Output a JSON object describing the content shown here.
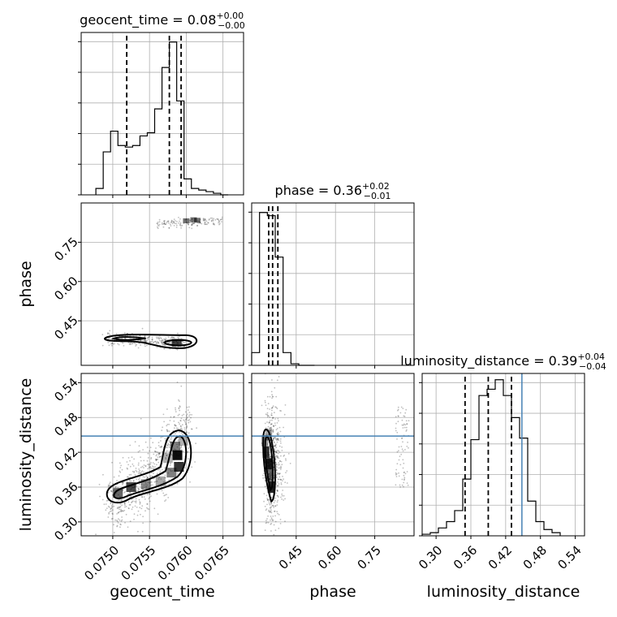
{
  "chart_data": {
    "type": "corner",
    "parameters": [
      "geocent_time",
      "phase",
      "luminosity_distance"
    ],
    "axis_labels": {
      "geocent_time": "geocent_time",
      "phase": "phase",
      "luminosity_distance": "luminosity_distance"
    },
    "ranges": {
      "geocent_time": [
        0.07457,
        0.07678
      ],
      "phase": [
        0.28,
        0.9
      ],
      "luminosity_distance": [
        0.276,
        0.556
      ]
    },
    "ticks": {
      "geocent_time": {
        "values": [
          0.075,
          0.0755,
          0.076,
          0.0765
        ],
        "labels": [
          "0.0750",
          "0.0755",
          "0.0760",
          "0.0765"
        ]
      },
      "phase": {
        "values": [
          0.45,
          0.6,
          0.75
        ],
        "labels": [
          "0.45",
          "0.60",
          "0.75"
        ]
      },
      "luminosity_distance": {
        "values": [
          0.3,
          0.36,
          0.42,
          0.48,
          0.54
        ],
        "labels": [
          "0.30",
          "0.36",
          "0.42",
          "0.48",
          "0.54"
        ]
      }
    },
    "titles": [
      {
        "param": "geocent_time",
        "base": "geocent_time = 0.08",
        "sup": "+0.00",
        "sub": "−0.00"
      },
      {
        "param": "phase",
        "base": "phase = 0.36",
        "sup": "+0.02",
        "sub": "−0.01"
      },
      {
        "param": "luminosity_distance",
        "base": "luminosity_distance = 0.39",
        "sup": "+0.04",
        "sub": "−0.04"
      }
    ],
    "histograms": {
      "geocent_time": {
        "edges": [
          0.07477,
          0.07487,
          0.07497,
          0.07507,
          0.07517,
          0.07527,
          0.07537,
          0.07547,
          0.07557,
          0.07567,
          0.07577,
          0.07587,
          0.07597,
          0.07607,
          0.07617,
          0.07627,
          0.07637,
          0.07647,
          0.07657
        ],
        "counts": [
          0.04,
          0.27,
          0.4,
          0.31,
          0.3,
          0.31,
          0.37,
          0.39,
          0.54,
          0.8,
          0.96,
          0.59,
          0.1,
          0.04,
          0.03,
          0.02,
          0.01,
          0.0
        ],
        "ymax": 1.02,
        "quantiles": [
          0.07519,
          0.07577,
          0.07593
        ]
      },
      "phase": {
        "edges": [
          0.28,
          0.31,
          0.34,
          0.37,
          0.4,
          0.43,
          0.46,
          0.49,
          0.52
        ],
        "counts": [
          0.08,
          0.96,
          0.94,
          0.68,
          0.08,
          0.01,
          0.0,
          0.0
        ],
        "ymax": 1.02,
        "quantiles": [
          0.345,
          0.36,
          0.38
        ]
      },
      "luminosity_distance": {
        "edges": [
          0.276,
          0.29,
          0.304,
          0.318,
          0.332,
          0.346,
          0.36,
          0.374,
          0.388,
          0.402,
          0.416,
          0.43,
          0.444,
          0.458,
          0.472,
          0.486,
          0.5,
          0.514
        ],
        "counts": [
          0.01,
          0.02,
          0.05,
          0.09,
          0.16,
          0.36,
          0.61,
          0.89,
          0.93,
          0.99,
          0.89,
          0.75,
          0.62,
          0.22,
          0.09,
          0.04,
          0.02
        ],
        "ymax": 1.03,
        "quantiles": [
          0.35,
          0.39,
          0.43
        ]
      }
    },
    "truths": {
      "luminosity_distance": 0.448
    },
    "grid": true
  }
}
